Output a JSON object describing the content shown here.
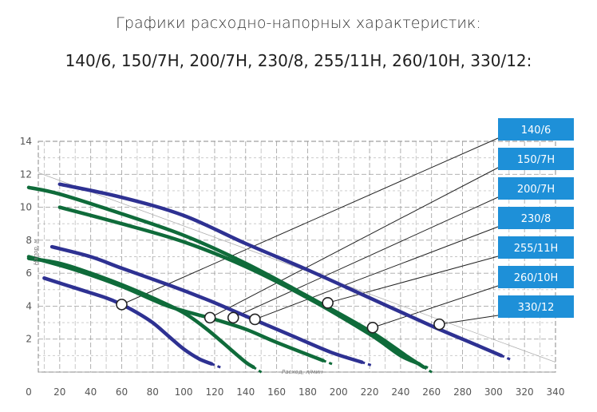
{
  "title_line1": "Графики расходно-напорных характеристик:",
  "title_line2": "140/6, 150/7H, 200/7H, 230/8, 255/11H, 260/10H, 330/12:",
  "colors": {
    "blue_curve": "#2e3192",
    "green_curve": "#0f6b3a",
    "legend_box": "#1e90d8",
    "grid": "#9e9e9e",
    "leader": "#222222"
  },
  "chart_data": {
    "type": "line",
    "xlabel": "Расход, л/мин",
    "ylabel": "Напор, м",
    "xlim": [
      0,
      340
    ],
    "ylim": [
      0,
      14
    ],
    "x_ticks": [
      0,
      20,
      40,
      60,
      80,
      100,
      120,
      140,
      160,
      180,
      200,
      220,
      240,
      260,
      280,
      300,
      320,
      340
    ],
    "y_ticks": [
      2,
      4,
      6,
      8,
      10,
      12,
      14
    ],
    "grid": true,
    "legend_labels": [
      "140/6",
      "150/7H",
      "200/7H",
      "230/8",
      "255/11H",
      "260/10H",
      "330/12"
    ],
    "series": [
      {
        "name": "140/6",
        "color": "blue",
        "x": [
          10,
          30,
          50,
          60,
          70,
          80,
          90,
          100,
          110,
          118
        ],
        "y": [
          5.7,
          5.1,
          4.5,
          4.1,
          3.6,
          3.0,
          2.2,
          1.4,
          0.8,
          0.5
        ]
      },
      {
        "name": "150/7H",
        "color": "green",
        "x": [
          0,
          20,
          40,
          60,
          80,
          100,
          115,
          130,
          140,
          145
        ],
        "y": [
          6.9,
          6.6,
          6.0,
          5.3,
          4.5,
          3.6,
          2.6,
          1.4,
          0.6,
          0.3
        ]
      },
      {
        "name": "200/7H",
        "color": "green",
        "x": [
          0,
          30,
          60,
          90,
          120,
          140,
          160,
          190
        ],
        "y": [
          7.0,
          6.2,
          5.2,
          4.0,
          3.2,
          2.6,
          1.8,
          0.7
        ]
      },
      {
        "name": "230/8",
        "color": "blue",
        "x": [
          15,
          40,
          60,
          90,
          115,
          130,
          150,
          170,
          195,
          215
        ],
        "y": [
          7.6,
          7.0,
          6.3,
          5.3,
          4.4,
          3.8,
          3.0,
          2.2,
          1.2,
          0.6
        ]
      },
      {
        "name": "255/11H",
        "color": "green",
        "x": [
          0,
          20,
          60,
          100,
          140,
          180,
          220,
          245,
          255
        ],
        "y": [
          11.2,
          10.8,
          9.6,
          8.3,
          6.6,
          4.6,
          2.5,
          0.9,
          0.3
        ]
      },
      {
        "name": "260/10H",
        "color": "green",
        "x": [
          20,
          60,
          100,
          140,
          180,
          220,
          240,
          252
        ],
        "y": [
          10.0,
          9.0,
          7.9,
          6.4,
          4.5,
          2.3,
          1.0,
          0.5
        ]
      },
      {
        "name": "330/12",
        "color": "blue",
        "x": [
          20,
          60,
          100,
          140,
          180,
          220,
          260,
          285,
          305
        ],
        "y": [
          11.4,
          10.6,
          9.5,
          7.8,
          6.2,
          4.5,
          2.8,
          1.8,
          1.0
        ]
      }
    ],
    "operating_points": [
      {
        "series": "140/6",
        "x": 60,
        "y": 4.1
      },
      {
        "series": "150/7H",
        "x": 117,
        "y": 3.3
      },
      {
        "series": "200/7H",
        "x": 132,
        "y": 3.3
      },
      {
        "series": "230/8",
        "x": 146,
        "y": 3.2
      },
      {
        "series": "255/11H",
        "x": 193,
        "y": 4.2
      },
      {
        "series": "260/10H",
        "x": 222,
        "y": 2.7
      },
      {
        "series": "330/12",
        "x": 265,
        "y": 2.9
      }
    ]
  }
}
